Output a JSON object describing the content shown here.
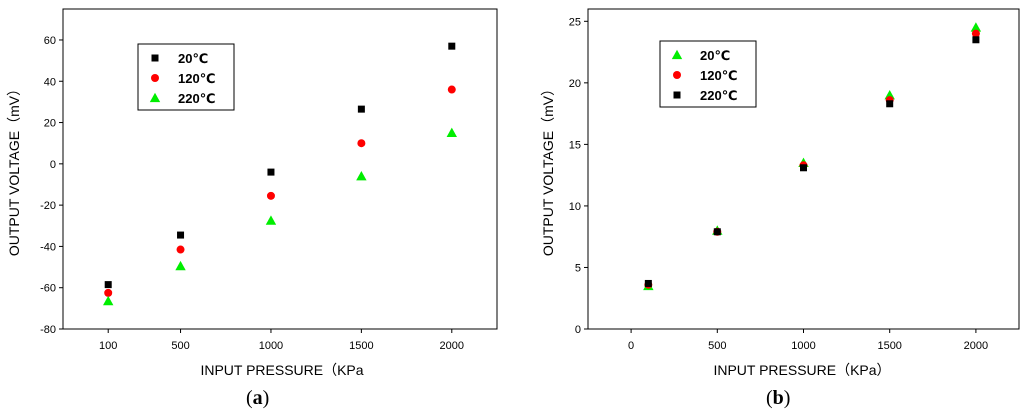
{
  "chart_data": [
    {
      "type": "scatter",
      "panel_label": "(a)",
      "panel_letter": "a",
      "xlabel": "INPUT PRESSURE（KPa",
      "ylabel": "OUTPUT VOLTAGE（mV）",
      "xlim": [
        -150,
        2250
      ],
      "ylim": [
        -80,
        75
      ],
      "xticks": [
        100,
        500,
        1000,
        1500,
        2000
      ],
      "xtick_labels": [
        "100",
        "500",
        "1000",
        "1500",
        "2000"
      ],
      "yticks": [
        -80,
        -60,
        -40,
        -20,
        0,
        20,
        40,
        60
      ],
      "ytick_labels": [
        "-80",
        "-60",
        "-40",
        "-20",
        "0",
        "20",
        "40",
        "60"
      ],
      "legend_position": "top-left",
      "grid": false,
      "series": [
        {
          "name": "20℃",
          "marker": "square",
          "color": "#000000",
          "x": [
            100,
            500,
            1000,
            1500,
            2000
          ],
          "y": [
            -58.5,
            -34.5,
            -4,
            26.5,
            57
          ]
        },
        {
          "name": "120℃",
          "marker": "circle",
          "color": "#ff0000",
          "x": [
            100,
            500,
            1000,
            1500,
            2000
          ],
          "y": [
            -62.5,
            -41.5,
            -15.5,
            10,
            36
          ]
        },
        {
          "name": "220℃",
          "marker": "triangle",
          "color": "#00ee00",
          "x": [
            100,
            500,
            1000,
            1500,
            2000
          ],
          "y": [
            -66.5,
            -49.5,
            -27.5,
            -6,
            15
          ]
        }
      ]
    },
    {
      "type": "scatter",
      "panel_label": "(b)",
      "panel_letter": "b",
      "xlabel": "INPUT PRESSURE（KPa）",
      "ylabel": "OUTPUT VOLTAGE（mV）",
      "xlim": [
        -250,
        2250
      ],
      "ylim": [
        0,
        26
      ],
      "xticks": [
        0,
        500,
        1000,
        1500,
        2000
      ],
      "xtick_labels": [
        "0",
        "500",
        "1000",
        "1500",
        "2000"
      ],
      "yticks": [
        0,
        5,
        10,
        15,
        20,
        25
      ],
      "ytick_labels": [
        "0",
        "5",
        "10",
        "15",
        "20",
        "25"
      ],
      "legend_position": "top-left",
      "grid": false,
      "series": [
        {
          "name": "20℃",
          "marker": "triangle",
          "color": "#00ee00",
          "x": [
            100,
            500,
            1000,
            1500,
            2000
          ],
          "y": [
            3.5,
            8.0,
            13.5,
            19.0,
            24.5
          ]
        },
        {
          "name": "120℃",
          "marker": "circle",
          "color": "#ff0000",
          "x": [
            100,
            500,
            1000,
            1500,
            2000
          ],
          "y": [
            3.6,
            7.9,
            13.3,
            18.6,
            24.0
          ]
        },
        {
          "name": "220℃",
          "marker": "square",
          "color": "#000000",
          "x": [
            100,
            500,
            1000,
            1500,
            2000
          ],
          "y": [
            3.7,
            7.9,
            13.1,
            18.3,
            23.5
          ]
        }
      ]
    }
  ]
}
